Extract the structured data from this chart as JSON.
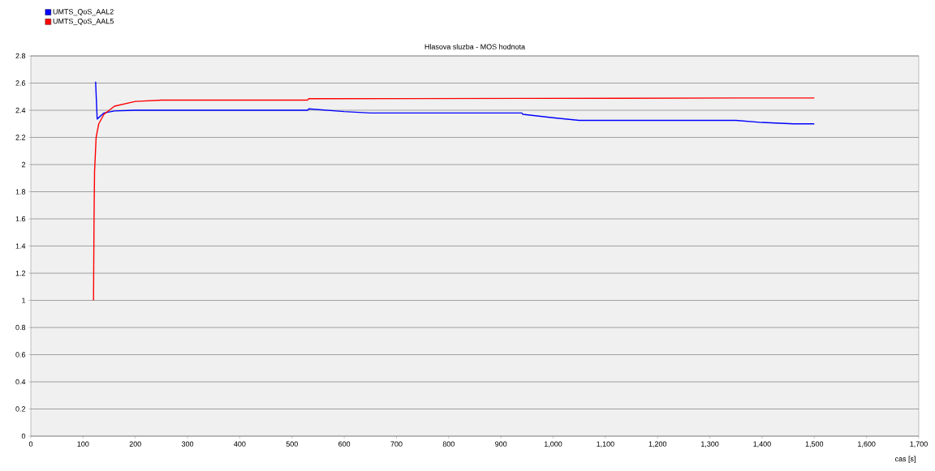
{
  "chart_data": {
    "type": "line",
    "title": "Hlasova sluzba - MOS hodnota",
    "xlabel": "cas [s]",
    "xlim": [
      0,
      1700
    ],
    "ylim": [
      0,
      2.8
    ],
    "xticks": [
      0,
      100,
      200,
      300,
      400,
      500,
      600,
      700,
      800,
      900,
      {
        "value": 1000,
        "label": "1,000"
      },
      {
        "value": 1100,
        "label": "1,100"
      },
      {
        "value": 1200,
        "label": "1,200"
      },
      {
        "value": 1300,
        "label": "1,300"
      },
      {
        "value": 1400,
        "label": "1,400"
      },
      {
        "value": 1500,
        "label": "1,500"
      },
      {
        "value": 1600,
        "label": "1,600"
      },
      {
        "value": 1700,
        "label": "1,700"
      }
    ],
    "yticks": [
      0,
      0.2,
      0.4,
      0.6,
      0.8,
      1,
      1.2,
      1.4,
      1.6,
      1.8,
      2,
      2.2,
      2.4,
      2.6,
      2.8
    ],
    "grid": "y",
    "legend": "top left",
    "marker": "none",
    "line_style": "solid",
    "series": [
      {
        "name": "UMTS_QoS_AAL2",
        "color": "#0000ff",
        "x": [
          124,
          127,
          140,
          160,
          200,
          530,
          532,
          600,
          650,
          940,
          942,
          1000,
          1050,
          1350,
          1400,
          1460,
          1500
        ],
        "values": [
          2.61,
          2.335,
          2.38,
          2.395,
          2.4,
          2.4,
          2.41,
          2.39,
          2.38,
          2.38,
          2.37,
          2.345,
          2.325,
          2.325,
          2.31,
          2.3,
          2.3
        ]
      },
      {
        "name": "UMTS_QoS_AAL5",
        "color": "#ff0000",
        "x": [
          120,
          121,
          122,
          125,
          130,
          140,
          160,
          200,
          250,
          530,
          532,
          940,
          1350,
          1500
        ],
        "values": [
          1.0,
          1.6,
          1.95,
          2.2,
          2.3,
          2.37,
          2.43,
          2.465,
          2.475,
          2.475,
          2.485,
          2.487,
          2.49,
          2.49
        ]
      }
    ]
  }
}
